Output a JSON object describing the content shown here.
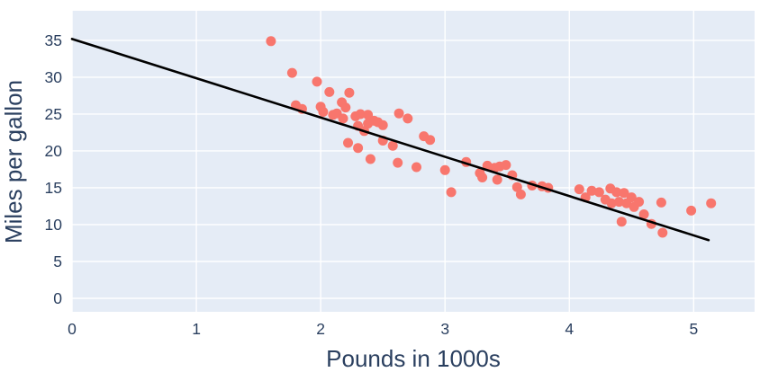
{
  "chart_data": {
    "type": "scatter",
    "title": "",
    "xlabel": "Pounds in 1000s",
    "ylabel": "Miles per gallon",
    "xlim": [
      0,
      5.49
    ],
    "ylim": [
      -1.83,
      39.02
    ],
    "x_ticks": [
      0,
      1,
      2,
      3,
      4,
      5
    ],
    "y_ticks": [
      0,
      5,
      10,
      15,
      20,
      25,
      30,
      35
    ],
    "grid": true,
    "legend": "none",
    "colors": {
      "point": "#f8766d",
      "line": "#000000",
      "plot_bg": "#e5ecf6",
      "grid": "#ffffff",
      "text": "#2a3f5f"
    },
    "fit_line": {
      "x": [
        0,
        5.12
      ],
      "y": [
        35.2,
        7.9
      ]
    },
    "points": [
      [
        1.6,
        34.9
      ],
      [
        1.77,
        30.6
      ],
      [
        1.8,
        26.2
      ],
      [
        1.85,
        25.7
      ],
      [
        1.97,
        29.4
      ],
      [
        2.0,
        26.0
      ],
      [
        2.02,
        25.3
      ],
      [
        2.07,
        28.0
      ],
      [
        2.1,
        24.9
      ],
      [
        2.13,
        25.1
      ],
      [
        2.17,
        26.6
      ],
      [
        2.18,
        24.4
      ],
      [
        2.2,
        25.9
      ],
      [
        2.22,
        21.1
      ],
      [
        2.23,
        27.9
      ],
      [
        2.28,
        24.7
      ],
      [
        2.3,
        23.4
      ],
      [
        2.3,
        20.4
      ],
      [
        2.32,
        25.0
      ],
      [
        2.35,
        22.7
      ],
      [
        2.38,
        24.9
      ],
      [
        2.38,
        23.7
      ],
      [
        2.4,
        18.9
      ],
      [
        2.43,
        24.1
      ],
      [
        2.46,
        23.9
      ],
      [
        2.5,
        23.5
      ],
      [
        2.5,
        21.4
      ],
      [
        2.58,
        20.7
      ],
      [
        2.63,
        25.1
      ],
      [
        2.62,
        18.4
      ],
      [
        2.7,
        24.4
      ],
      [
        2.77,
        17.8
      ],
      [
        2.83,
        22.0
      ],
      [
        2.88,
        21.5
      ],
      [
        3.0,
        17.4
      ],
      [
        3.05,
        14.4
      ],
      [
        3.17,
        18.5
      ],
      [
        3.28,
        17.0
      ],
      [
        3.3,
        16.4
      ],
      [
        3.34,
        18.0
      ],
      [
        3.4,
        17.7
      ],
      [
        3.42,
        16.1
      ],
      [
        3.44,
        17.9
      ],
      [
        3.49,
        18.1
      ],
      [
        3.54,
        16.7
      ],
      [
        3.58,
        15.1
      ],
      [
        3.61,
        14.1
      ],
      [
        3.7,
        15.3
      ],
      [
        3.78,
        15.2
      ],
      [
        3.83,
        15.0
      ],
      [
        4.08,
        14.8
      ],
      [
        4.13,
        13.7
      ],
      [
        4.18,
        14.6
      ],
      [
        4.24,
        14.4
      ],
      [
        4.29,
        13.4
      ],
      [
        4.33,
        14.9
      ],
      [
        4.34,
        12.9
      ],
      [
        4.38,
        14.4
      ],
      [
        4.4,
        13.1
      ],
      [
        4.42,
        10.4
      ],
      [
        4.44,
        14.3
      ],
      [
        4.46,
        12.9
      ],
      [
        4.5,
        13.7
      ],
      [
        4.52,
        12.4
      ],
      [
        4.56,
        13.1
      ],
      [
        4.6,
        11.4
      ],
      [
        4.66,
        10.1
      ],
      [
        4.74,
        13.0
      ],
      [
        4.75,
        8.9
      ],
      [
        4.98,
        11.9
      ],
      [
        5.14,
        12.9
      ]
    ]
  }
}
